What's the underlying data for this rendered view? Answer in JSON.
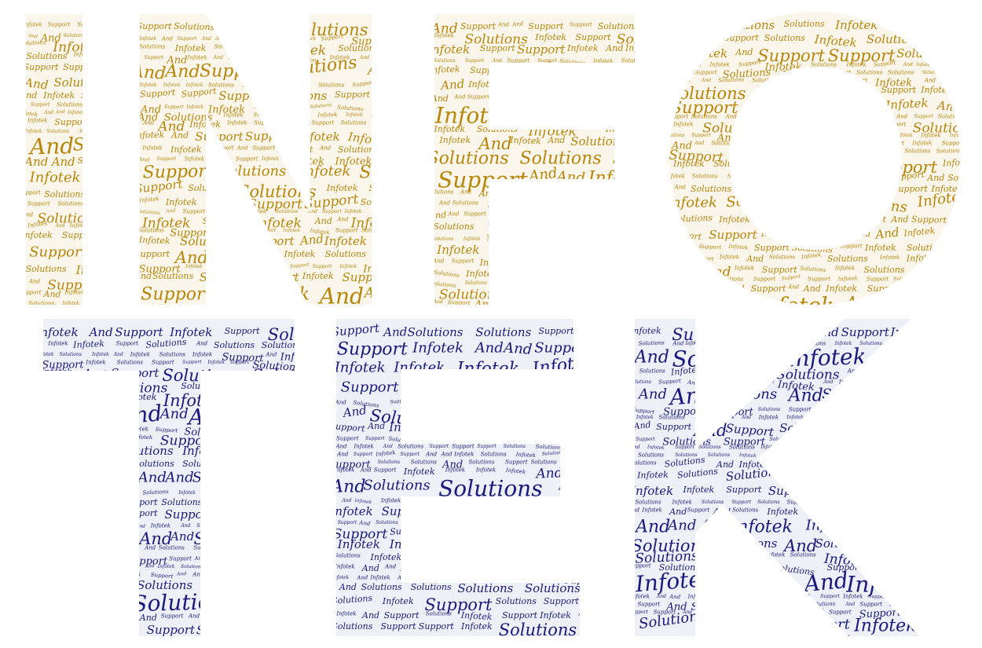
{
  "palette": {
    "background": "#ffffff",
    "top_fill": "#fbf6ec",
    "top_text": "#b8860b",
    "bottom_fill": "#eef0f8",
    "bottom_text": "#1a1a7e"
  },
  "words": [
    "Infotek",
    "And",
    "Solutions",
    "Support"
  ],
  "rows": [
    {
      "letters": [
        "I",
        "N",
        "F",
        "O"
      ],
      "theme": "gold"
    },
    {
      "letters": [
        "T",
        "E",
        "K"
      ],
      "theme": "navy"
    }
  ]
}
